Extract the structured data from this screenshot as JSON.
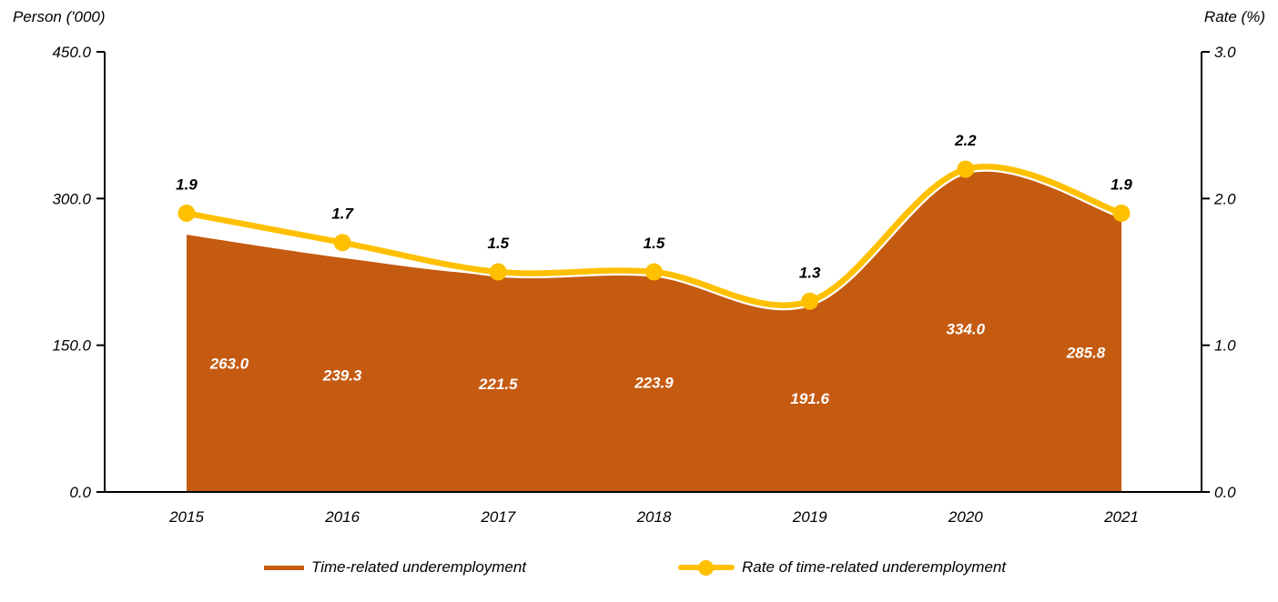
{
  "chart_data": {
    "type": "area",
    "subtype": "combo-area-line-dual-axis",
    "categories": [
      "2015",
      "2016",
      "2017",
      "2018",
      "2019",
      "2020",
      "2021"
    ],
    "series": [
      {
        "name": "Time-related underemployment",
        "type": "area",
        "axis": "left",
        "values": [
          263.0,
          239.3,
          221.5,
          223.9,
          191.6,
          334.0,
          285.8
        ],
        "color": "#C55A11",
        "label_color": "#FFFFFF"
      },
      {
        "name": "Rate of time-related underemployment",
        "type": "line",
        "axis": "right",
        "values": [
          1.9,
          1.7,
          1.5,
          1.5,
          1.3,
          2.2,
          1.9
        ],
        "color": "#FFC000",
        "outline_color": "#FFFFFF",
        "label_color": "#000000"
      }
    ],
    "left_axis": {
      "title": "Person ('000)",
      "min": 0,
      "max": 450,
      "tick_labels": [
        "450.0",
        "300.0",
        "150.0",
        "0.0"
      ]
    },
    "right_axis": {
      "title": "Rate (%)",
      "min": 0,
      "max": 3,
      "tick_labels": [
        "3.0",
        "2.0",
        "1.0",
        "0.0"
      ]
    },
    "axis_color": "#000000",
    "grid": false,
    "legend_position": "bottom",
    "smooth": true
  }
}
